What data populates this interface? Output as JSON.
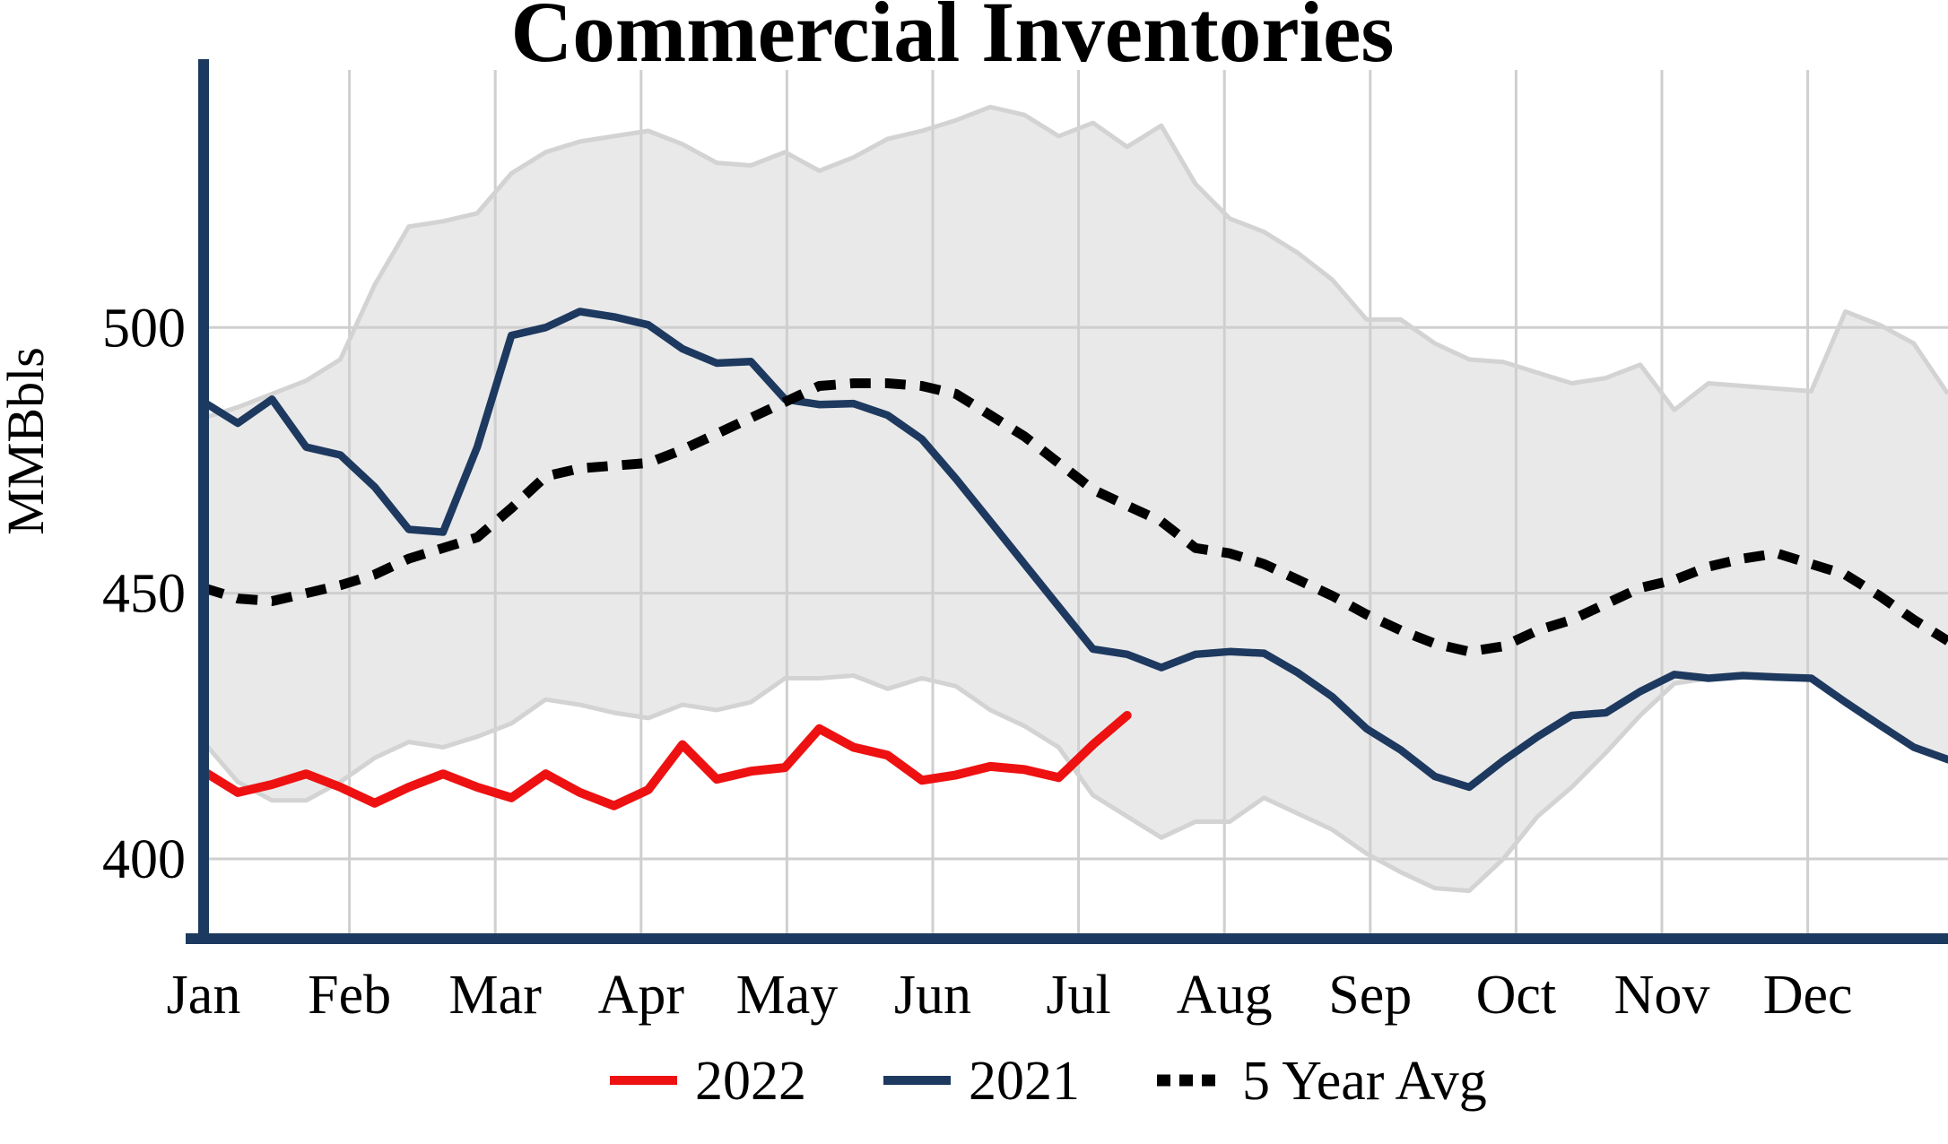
{
  "title": "Commercial Inventories",
  "y_axis_label": "MMBbls",
  "colors": {
    "accent_2022": "#EE1111",
    "accent_2021": "#1E395F",
    "five_year_avg": "#000000",
    "band_fill": "#E9E9E9",
    "band_edge": "#D3D3D3",
    "gridline": "#CFCFCF",
    "axis": "#1C3A5F"
  },
  "chart_data": {
    "type": "line",
    "title": "Commercial Inventories",
    "xlabel": "",
    "ylabel": "MMBbls",
    "x_unit": "weeks (Jan-Dec, 52 weekly points)",
    "x_tick_labels": [
      "Jan",
      "Feb",
      "Mar",
      "Apr",
      "May",
      "Jun",
      "Jul",
      "Aug",
      "Sep",
      "Oct",
      "Nov",
      "Dec"
    ],
    "y_ticks": [
      400,
      450,
      500
    ],
    "ylim": [
      385,
      550
    ],
    "grid": true,
    "legend_position": "bottom",
    "band": {
      "name": "5-year range",
      "top": [
        483,
        485,
        487.5,
        490,
        494,
        508,
        519,
        520,
        521.5,
        529,
        533,
        535,
        536,
        537,
        534.5,
        531,
        530.5,
        533,
        529.5,
        532,
        535.5,
        537,
        539,
        541.5,
        540,
        536,
        538.5,
        534,
        538,
        527,
        520.5,
        518,
        514,
        509,
        501.5,
        501.5,
        497,
        494,
        493.5,
        491.5,
        489.5,
        490.5,
        493,
        484.5,
        489.5,
        489,
        488.5,
        488,
        503,
        500.5,
        497,
        487.5
      ],
      "bottom": [
        422,
        414.5,
        411,
        411,
        414.5,
        419,
        422,
        421,
        423,
        425.5,
        430,
        429,
        427.5,
        426.5,
        429,
        428,
        429.5,
        434,
        434,
        434.5,
        432,
        434,
        432.5,
        428,
        425,
        421,
        412,
        408,
        404,
        407,
        407,
        411.5,
        408.5,
        405.5,
        401,
        397.5,
        394.5,
        394,
        400,
        408,
        413.5,
        420,
        427,
        433,
        434,
        434.5,
        434.2,
        434,
        429.5,
        425.2,
        421,
        418.7
      ]
    },
    "series": [
      {
        "name": "2022",
        "color": "#EE1111",
        "style": "solid",
        "start_week": 0,
        "values": [
          416.5,
          412.5,
          414,
          416,
          413.5,
          410.5,
          413.5,
          416,
          413.5,
          411.5,
          416,
          412.5,
          410,
          413,
          421.5,
          415,
          416.5,
          417.2,
          424.5,
          421,
          419.5,
          414.8,
          415.8,
          417.4,
          416.8,
          415.3,
          421.5,
          427
        ]
      },
      {
        "name": "2021",
        "color": "#1E395F",
        "style": "solid",
        "start_week": 0,
        "values": [
          486,
          482,
          486.5,
          477.5,
          476,
          470,
          462,
          461.5,
          477.5,
          498.5,
          500,
          503,
          502,
          500.5,
          496,
          493.3,
          493.6,
          486.5,
          485.5,
          485.7,
          483.5,
          479,
          471.5,
          463.5,
          455.5,
          447.5,
          439.5,
          438.5,
          436,
          438.5,
          439,
          438.7,
          435,
          430.5,
          424.5,
          420.5,
          415.5,
          413.5,
          418.5,
          423,
          427,
          427.5,
          431.5,
          434.7,
          434,
          434.5,
          434.2,
          434,
          429.5,
          425.2,
          421,
          418.7
        ]
      },
      {
        "name": "5 Year Avg",
        "color": "#000000",
        "style": "dashed",
        "start_week": 0,
        "values": [
          451,
          449,
          448.5,
          450,
          451.5,
          453.5,
          456.5,
          458.5,
          460.5,
          466,
          472,
          473.5,
          474,
          474.5,
          477,
          480,
          483,
          486,
          489,
          489.5,
          489.5,
          489,
          487.5,
          483.5,
          479.5,
          474.5,
          469.5,
          466.5,
          463.5,
          458.5,
          457.5,
          455.5,
          452.5,
          449.5,
          446,
          443,
          440.5,
          439,
          440,
          443,
          445,
          448,
          451,
          452.5,
          455,
          456.5,
          457.5,
          455.5,
          453.5,
          449.5,
          445,
          441
        ]
      }
    ]
  }
}
